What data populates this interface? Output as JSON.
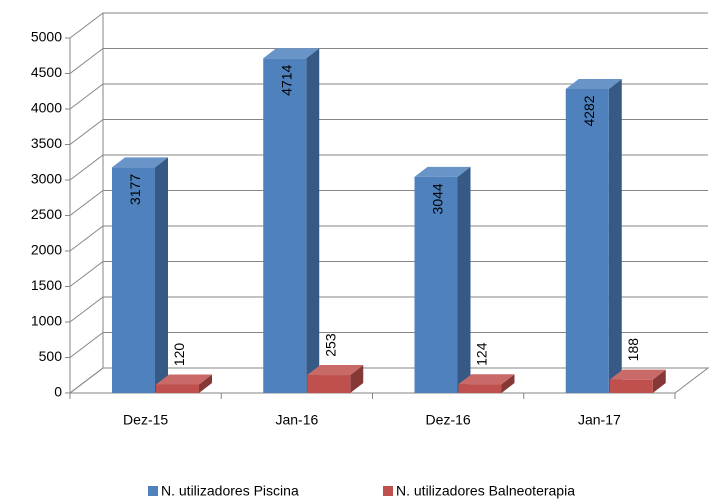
{
  "chart_data": {
    "type": "bar3d",
    "categories": [
      "Dez-15",
      "Jan-16",
      "Dez-16",
      "Jan-17"
    ],
    "series": [
      {
        "name": "N. utilizadores Piscina",
        "color": "#4f81bd",
        "values": [
          3177,
          4714,
          3044,
          4282
        ]
      },
      {
        "name": "N. utilizadores Balneoterapia",
        "color": "#c0504d",
        "values": [
          120,
          253,
          124,
          188
        ]
      }
    ],
    "ylim": [
      0,
      5000
    ],
    "yticks": [
      0,
      500,
      1000,
      1500,
      2000,
      2500,
      3000,
      3500,
      4000,
      4500,
      5000
    ],
    "grid": true,
    "legend": "bottom"
  }
}
